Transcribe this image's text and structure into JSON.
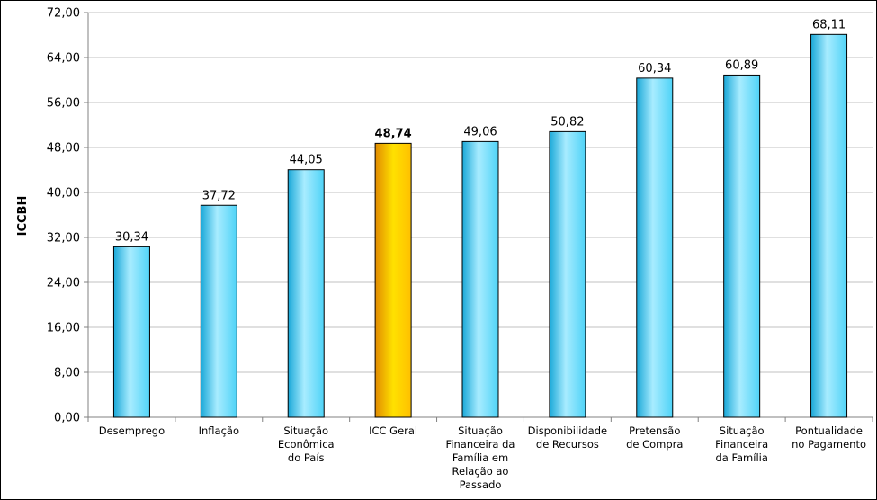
{
  "chart_data": {
    "type": "bar",
    "title": "",
    "xlabel": "",
    "ylabel": "ICCBH",
    "ylim": [
      0,
      72
    ],
    "yticks": [
      "0,00",
      "8,00",
      "16,00",
      "24,00",
      "32,00",
      "40,00",
      "48,00",
      "56,00",
      "64,00",
      "72,00"
    ],
    "grid": true,
    "legend": "none",
    "categories": [
      [
        "Desemprego"
      ],
      [
        "Inflação"
      ],
      [
        "Situação",
        "Econômica",
        "do País"
      ],
      [
        "ICC Geral"
      ],
      [
        "Situação",
        "Financeira da",
        "Família em",
        "Relação ao",
        "Passado"
      ],
      [
        "Disponibilidade",
        "de Recursos"
      ],
      [
        "Pretensão",
        "de Compra"
      ],
      [
        "Situação",
        "Financeira",
        "da Família"
      ],
      [
        "Pontualidade",
        "no Pagamento"
      ]
    ],
    "values": [
      30.34,
      37.72,
      44.05,
      48.74,
      49.06,
      50.82,
      60.34,
      60.89,
      68.11
    ],
    "value_labels": [
      "30,34",
      "37,72",
      "44,05",
      "48,74",
      "49,06",
      "50,82",
      "60,34",
      "60,89",
      "68,11"
    ],
    "highlight_index": 3,
    "colors": {
      "bar": "#4fd3f7",
      "bar_light": "#a8ecff",
      "bar_dark": "#1aa8d8",
      "highlight": "#ffc000",
      "highlight_light": "#ffe100",
      "highlight_dark": "#e08a00",
      "grid": "#c0c0c0",
      "axis": "#808080"
    }
  }
}
